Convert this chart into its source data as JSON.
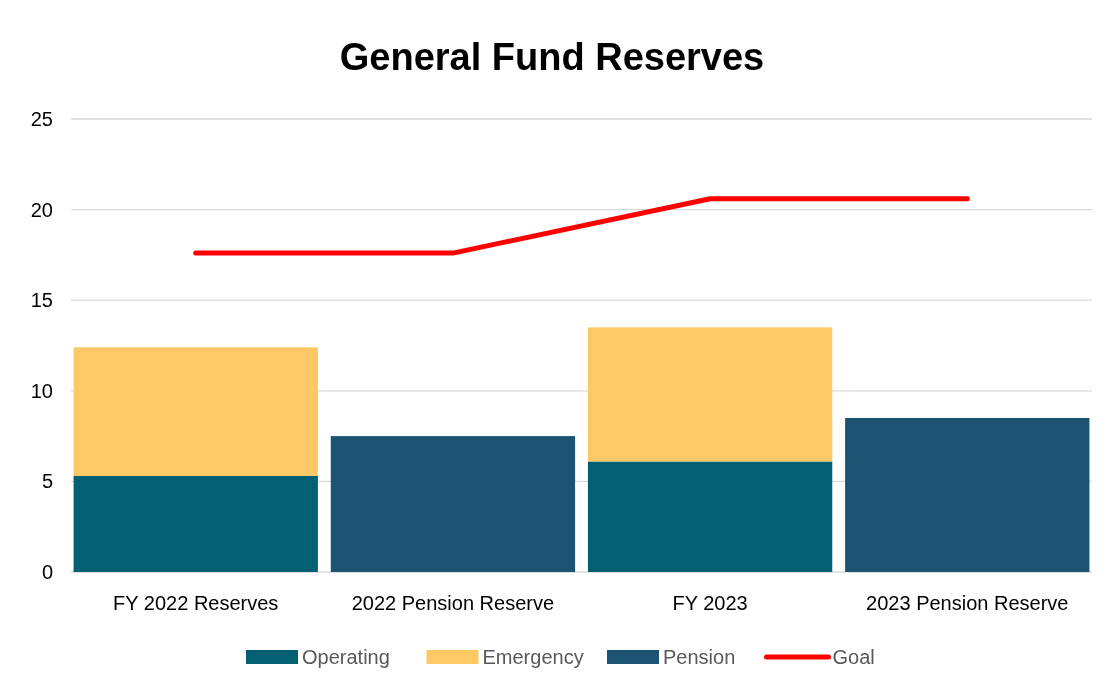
{
  "chart_data": {
    "type": "bar",
    "title": "General Fund Reserves",
    "stacked": true,
    "categories": [
      "FY 2022 Reserves",
      "2022 Pension Reserve",
      "FY 2023",
      "2023 Pension Reserve"
    ],
    "series": [
      {
        "name": "Operating",
        "color": "#035f72",
        "values": [
          5.3,
          null,
          6.1,
          null
        ]
      },
      {
        "name": "Emergency",
        "color": "#fdc966",
        "values": [
          7.1,
          null,
          7.4,
          null
        ]
      },
      {
        "name": "Pension",
        "color": "#1c5373",
        "values": [
          null,
          7.5,
          null,
          8.5
        ]
      },
      {
        "name": "Goal",
        "type": "line",
        "color": "#ff0000",
        "values": [
          17.6,
          17.6,
          20.6,
          20.6
        ]
      }
    ],
    "ylim": [
      0,
      25
    ],
    "yticks": [
      0,
      5,
      10,
      15,
      20,
      25
    ],
    "grid": "y",
    "legend": "bottom"
  }
}
